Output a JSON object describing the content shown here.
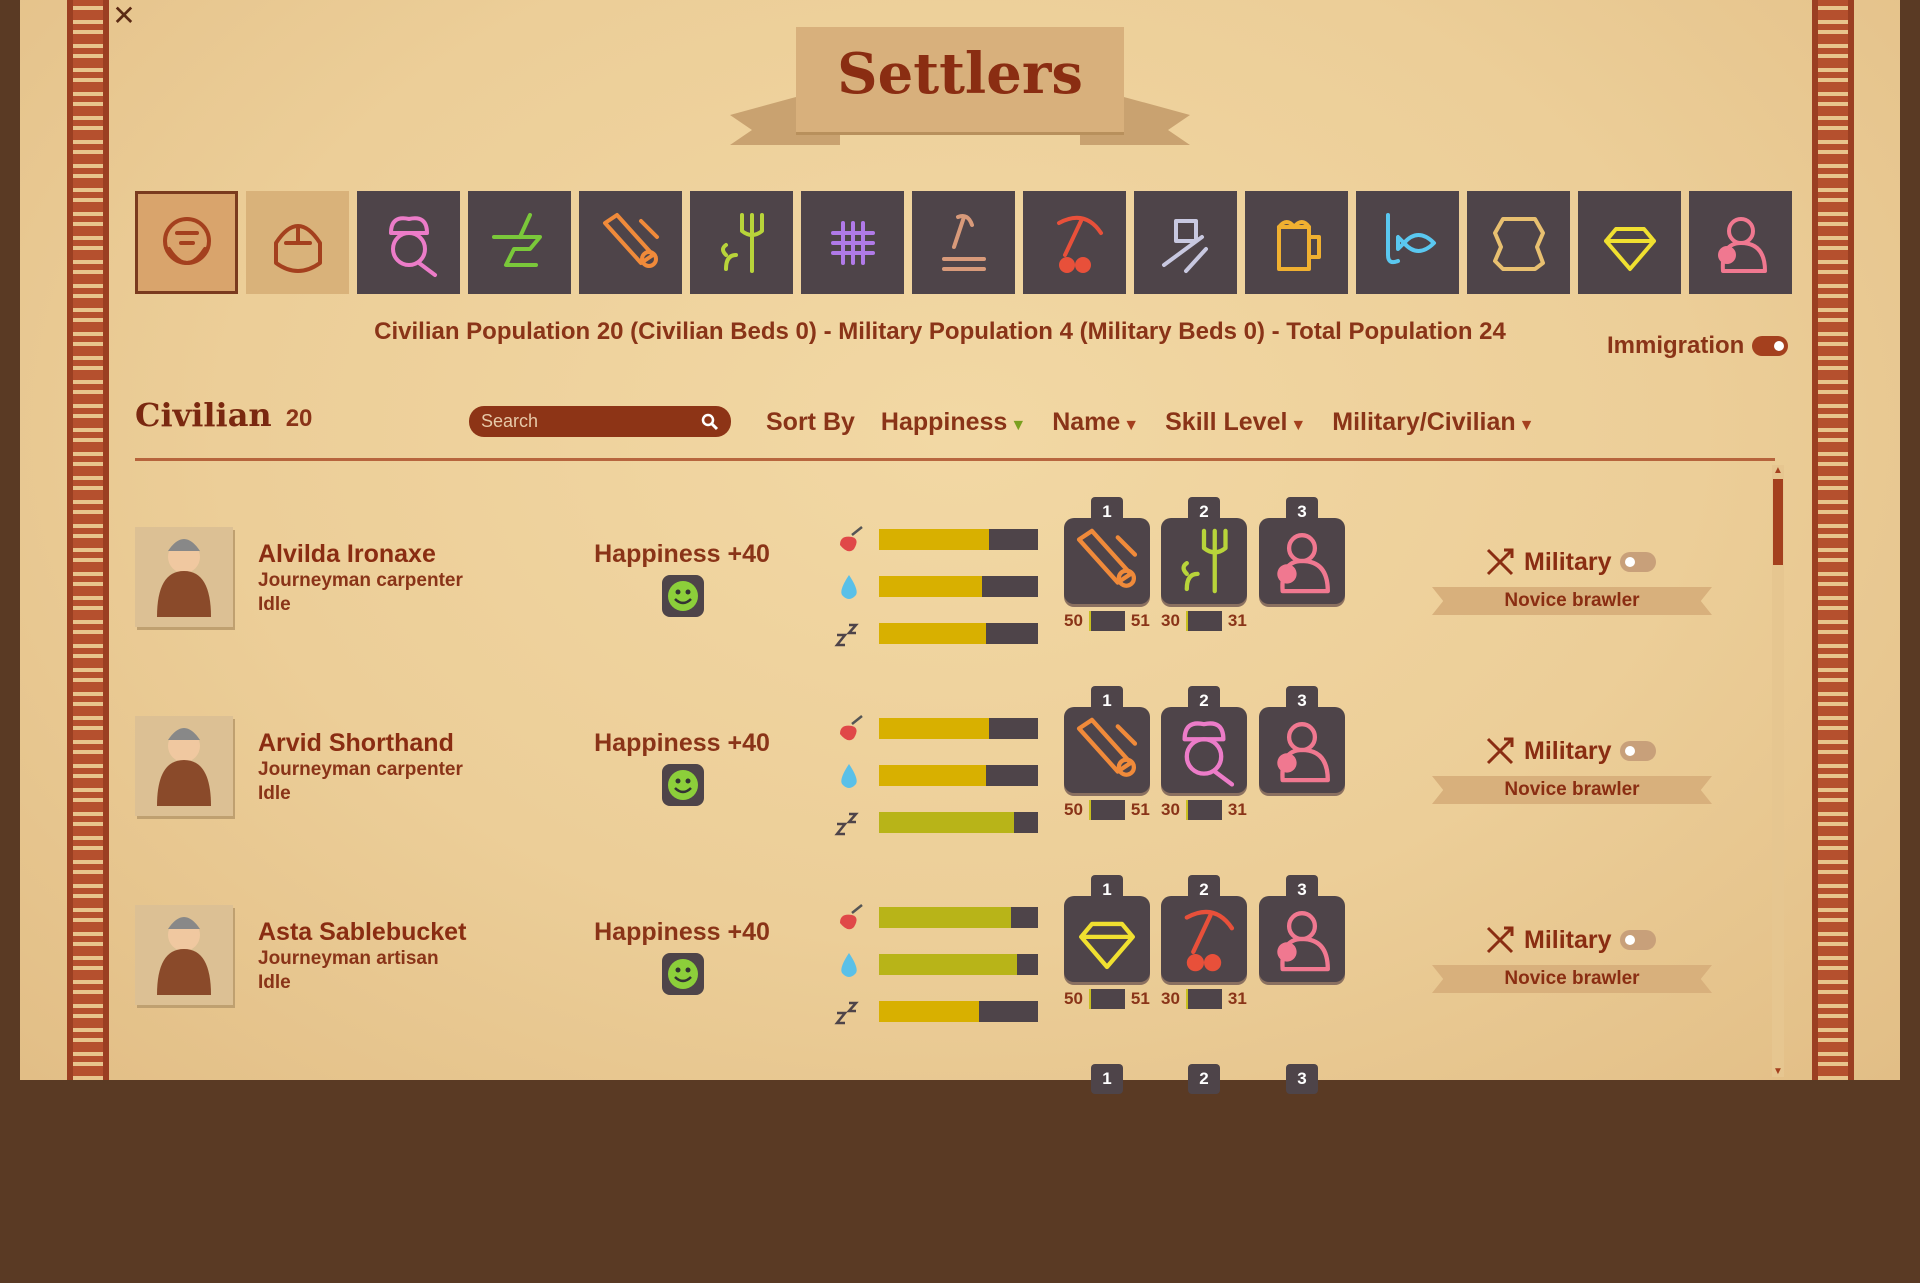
{
  "window": {
    "close_icon": "close-icon",
    "title": "Settlers"
  },
  "categories": [
    {
      "icon": "dwarf-face-icon",
      "color": "#a4401e",
      "style": "sel"
    },
    {
      "icon": "dwarf-helmet-icon",
      "color": "#a4401e",
      "style": "light"
    },
    {
      "icon": "cook-icon",
      "color": "#ec7cc8"
    },
    {
      "icon": "anvil-icon",
      "color": "#7ac83a"
    },
    {
      "icon": "carpentry-saw-icon",
      "color": "#f08a3a"
    },
    {
      "icon": "farming-pitchfork-icon",
      "color": "#b8d43a"
    },
    {
      "icon": "weaving-icon",
      "color": "#b07ae8"
    },
    {
      "icon": "woodcutting-axe-icon",
      "color": "#d89a7a"
    },
    {
      "icon": "mining-pickaxe-icon",
      "color": "#e8503a"
    },
    {
      "icon": "crafting-ruler-icon",
      "color": "#c8c8e0"
    },
    {
      "icon": "brewing-beer-icon",
      "color": "#f0b030"
    },
    {
      "icon": "fishing-icon",
      "color": "#5ac8f0"
    },
    {
      "icon": "leather-icon",
      "color": "#e8c070"
    },
    {
      "icon": "gem-icon",
      "color": "#f0e030"
    },
    {
      "icon": "brawler-icon",
      "color": "#f07890"
    }
  ],
  "summary": {
    "population": "Civilian Population 20 (Civilian Beds 0) - Military Population 4 (Military Beds 0) - Total Population 24",
    "immigration_label": "Immigration",
    "immigration_on": true
  },
  "section": {
    "title": "Civilian",
    "count": "20"
  },
  "search": {
    "placeholder": "Search"
  },
  "sort": {
    "label": "Sort By",
    "options": [
      {
        "label": "Happiness",
        "active": true
      },
      {
        "label": "Name"
      },
      {
        "label": "Skill Level"
      },
      {
        "label": "Military/Civilian"
      }
    ]
  },
  "settlers": [
    {
      "name": "Alvilda Ironaxe",
      "job": "Journeyman carpenter",
      "status": "Idle",
      "happiness": "Happiness +40",
      "needs": {
        "food": 0.69,
        "water": 0.65,
        "sleep": 0.67
      },
      "needs_colors": [
        "#d8b000",
        "#d8b000",
        "#d8b000"
      ],
      "skills": [
        {
          "slot": "1",
          "icon": "carpentry-saw-icon",
          "color": "#f08a3a"
        },
        {
          "slot": "2",
          "icon": "farming-pitchfork-icon",
          "color": "#b8d43a"
        },
        {
          "slot": "3",
          "icon": "brawler-icon",
          "color": "#f07890"
        }
      ],
      "progress": [
        [
          "50",
          "51"
        ],
        [
          "30",
          "31"
        ]
      ],
      "military_label": "Military",
      "military_on": false,
      "military_skill": "Novice brawler"
    },
    {
      "name": "Arvid Shorthand",
      "job": "Journeyman carpenter",
      "status": "Idle",
      "happiness": "Happiness +40",
      "needs": {
        "food": 0.69,
        "water": 0.67,
        "sleep": 0.85
      },
      "needs_colors": [
        "#d8b000",
        "#d8b000",
        "#b8b418"
      ],
      "skills": [
        {
          "slot": "1",
          "icon": "carpentry-saw-icon",
          "color": "#f08a3a"
        },
        {
          "slot": "2",
          "icon": "cook-icon",
          "color": "#ec7cc8"
        },
        {
          "slot": "3",
          "icon": "brawler-icon",
          "color": "#f07890"
        }
      ],
      "progress": [
        [
          "50",
          "51"
        ],
        [
          "30",
          "31"
        ]
      ],
      "military_label": "Military",
      "military_on": false,
      "military_skill": "Novice brawler"
    },
    {
      "name": "Asta Sablebucket",
      "job": "Journeyman artisan",
      "status": "Idle",
      "happiness": "Happiness +40",
      "needs": {
        "food": 0.83,
        "water": 0.87,
        "sleep": 0.63
      },
      "needs_colors": [
        "#b8b418",
        "#b8b418",
        "#d8b000"
      ],
      "skills": [
        {
          "slot": "1",
          "icon": "gem-icon",
          "color": "#f0e030"
        },
        {
          "slot": "2",
          "icon": "mining-pickaxe-icon",
          "color": "#e8503a"
        },
        {
          "slot": "3",
          "icon": "brawler-icon",
          "color": "#f07890"
        }
      ],
      "progress": [
        [
          "50",
          "51"
        ],
        [
          "30",
          "31"
        ]
      ],
      "military_label": "Military",
      "military_on": false,
      "military_skill": "Novice brawler"
    },
    {
      "partial": true,
      "skills": [
        {
          "slot": "1"
        },
        {
          "slot": "2"
        },
        {
          "slot": "3"
        }
      ]
    }
  ]
}
